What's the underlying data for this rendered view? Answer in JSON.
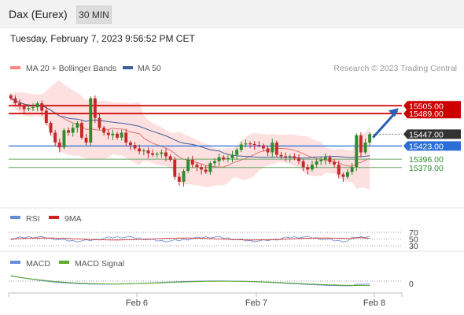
{
  "header": {
    "instrument": "Dax (Eurex)",
    "timeframe_button": "30 MIN",
    "timestamp": "Tuesday, February 7, 2023 9:56:52 PM CET"
  },
  "legend": {
    "ma20": "MA 20 + Bollinger Bands",
    "ma50": "MA 50",
    "credit": "Research © 2023 Trading Central",
    "rsi": "RSI",
    "rsi_ma": "9MA",
    "macd": "MACD",
    "macd_signal": "MACD Signal"
  },
  "colors": {
    "up": "#2e8b2e",
    "down": "#c62828",
    "ma20": "#e57373",
    "bollinger_fill": "#fde0e0",
    "ma50": "#3f5fa0",
    "resistance": "#cc0000",
    "support_blue": "#2b6fd6",
    "support_green": "#6aa86a",
    "last_price_tag": "#333333",
    "rsi_line": "#6a8ad6",
    "rsi_ma_line": "#cc2222",
    "macd_line": "#6a8ad6",
    "macd_signal_line": "#5aaa2a",
    "arrow": "#2b5fb0"
  },
  "chart_data": [
    {
      "type": "candlestick",
      "title": "Dax (Eurex)",
      "x_labels": [
        "Feb 6",
        "Feb 7",
        "Feb 8"
      ],
      "price_range": [
        15300,
        15560
      ],
      "levels": [
        {
          "label": "15505.00",
          "value": 15505,
          "kind": "resistance"
        },
        {
          "label": "15489.00",
          "value": 15489,
          "kind": "resistance"
        },
        {
          "label": "15447.00",
          "value": 15447,
          "kind": "last"
        },
        {
          "label": "15423.00",
          "value": 15423,
          "kind": "pivot"
        },
        {
          "label": "15396.00",
          "value": 15396,
          "kind": "support"
        },
        {
          "label": "15379.00",
          "value": 15379,
          "kind": "support"
        }
      ],
      "close_series": [
        15520,
        15510,
        15505,
        15498,
        15500,
        15502,
        15510,
        15495,
        15470,
        15450,
        15430,
        15420,
        15455,
        15450,
        15460,
        15470,
        15440,
        15430,
        15520,
        15480,
        15460,
        15450,
        15445,
        15448,
        15440,
        15450,
        15430,
        15425,
        15418,
        15412,
        15414,
        15408,
        15405,
        15407,
        15410,
        15402,
        15395,
        15360,
        15350,
        15372,
        15395,
        15385,
        15380,
        15375,
        15370,
        15388,
        15392,
        15400,
        15396,
        15398,
        15405,
        15415,
        15426,
        15428,
        15427,
        15425,
        15424,
        15418,
        15410,
        15430,
        15405,
        15402,
        15400,
        15402,
        15398,
        15392,
        15380,
        15375,
        15385,
        15392,
        15395,
        15400,
        15390,
        15385,
        15365,
        15360,
        15370,
        15380,
        15445,
        15410,
        15430,
        15447
      ]
    },
    {
      "type": "line",
      "title": "RSI",
      "series": [
        {
          "name": "RSI"
        },
        {
          "name": "9MA"
        }
      ],
      "y_ticks": [
        70,
        50,
        30
      ]
    },
    {
      "type": "line",
      "title": "MACD",
      "series": [
        {
          "name": "MACD"
        },
        {
          "name": "MACD Signal"
        }
      ],
      "y_ticks": [
        0
      ]
    }
  ]
}
